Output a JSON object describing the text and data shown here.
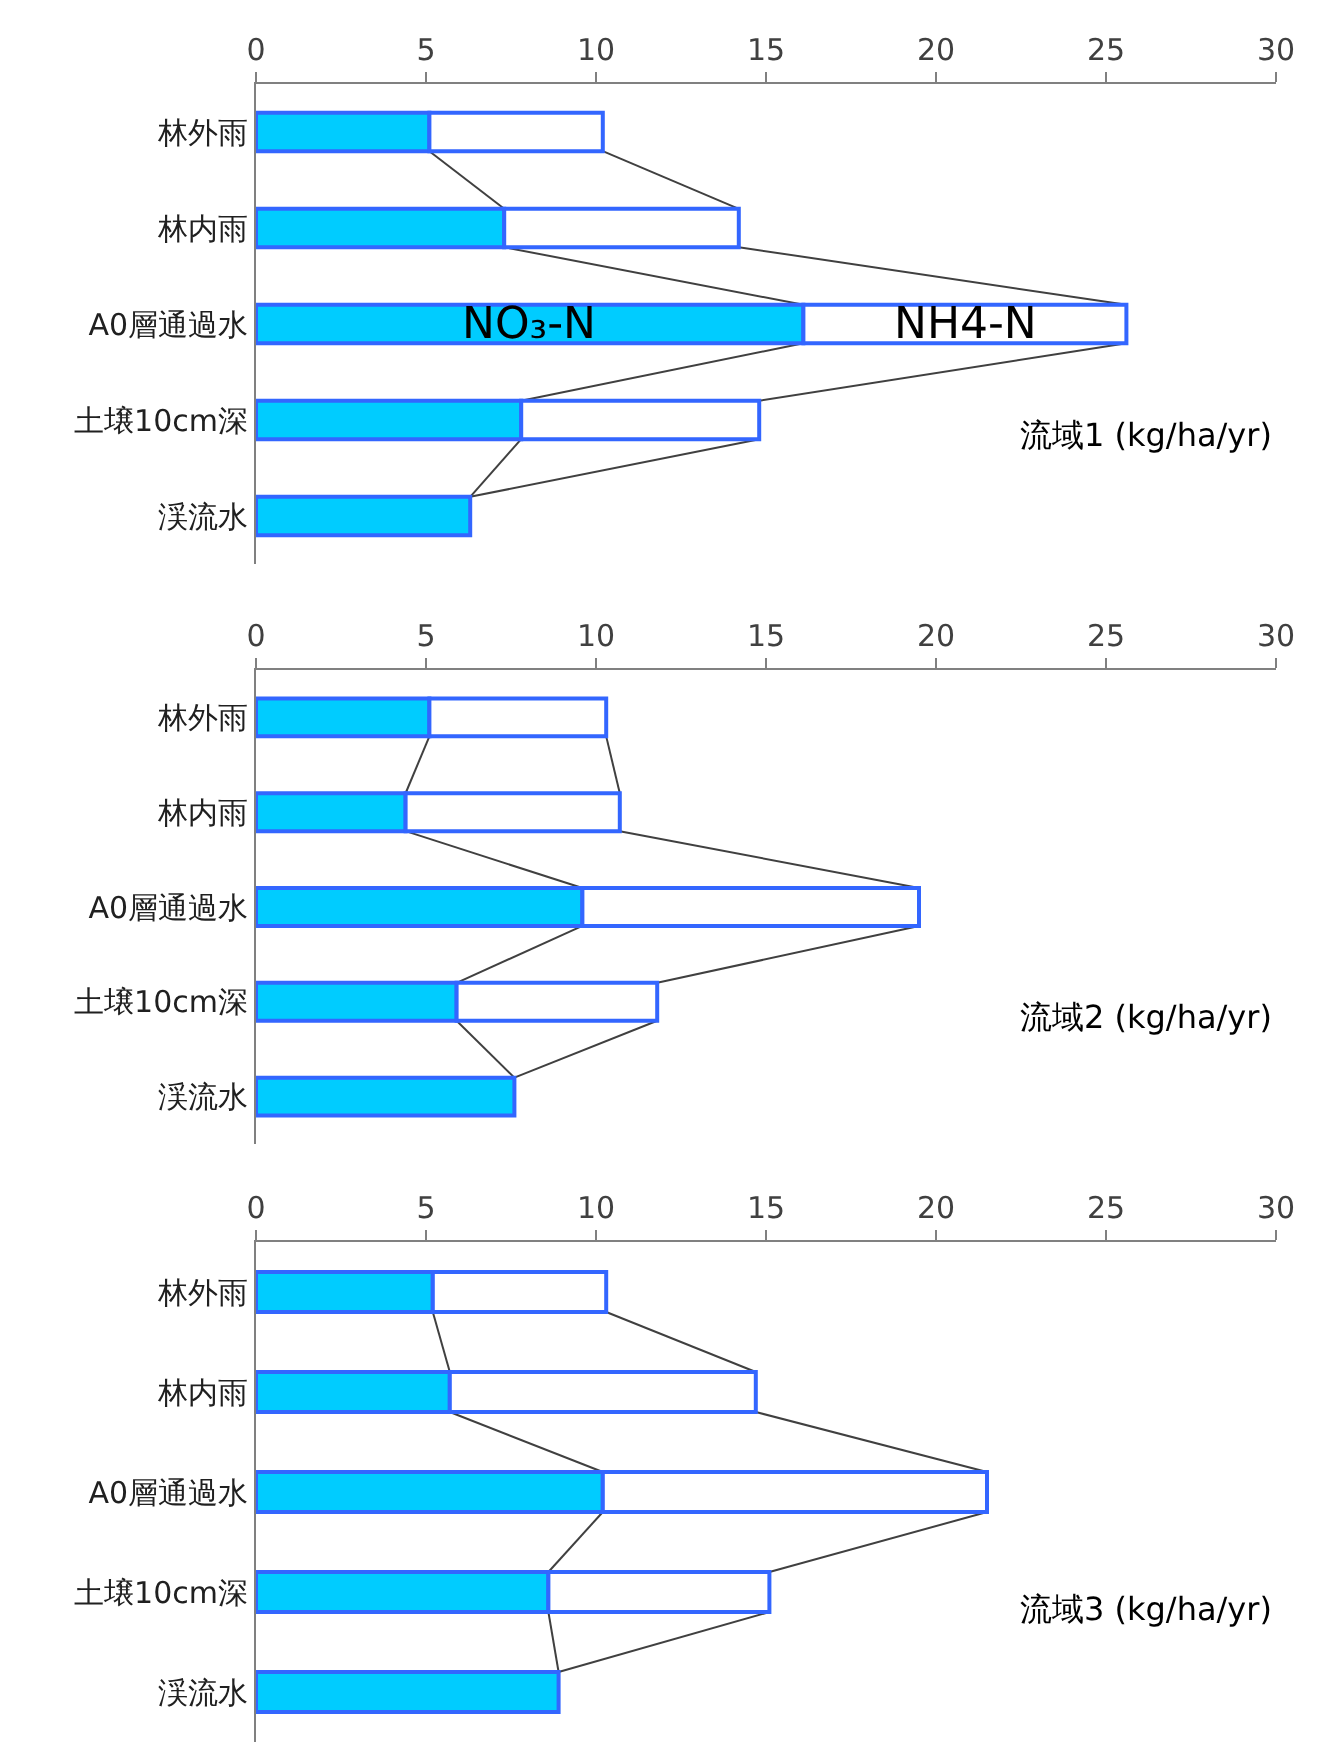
{
  "chart_data": [
    {
      "type": "bar",
      "orientation": "horizontal",
      "stacked": true,
      "categories": [
        "林外雨",
        "林内雨",
        "A0層通過水",
        "土壌10cm深",
        "渓流水"
      ],
      "series": [
        {
          "name": "NO₃-N",
          "color": "#00ccff",
          "values": [
            5.1,
            7.3,
            16.1,
            7.8,
            6.3
          ]
        },
        {
          "name": "NH4-N",
          "color": "#ffffff",
          "values": [
            5.1,
            6.9,
            9.5,
            7.0,
            0
          ]
        }
      ],
      "xlim": [
        0,
        30
      ],
      "xticks": [
        0,
        5,
        10,
        15,
        20,
        25,
        30
      ],
      "grid": false,
      "annotations": [
        "流域1 (kg/ha/yr)"
      ]
    },
    {
      "type": "bar",
      "orientation": "horizontal",
      "stacked": true,
      "categories": [
        "林外雨",
        "林内雨",
        "A0層通過水",
        "土壌10cm深",
        "渓流水"
      ],
      "series": [
        {
          "color": "#00ccff",
          "values": [
            5.1,
            4.4,
            9.6,
            5.9,
            7.6
          ]
        },
        {
          "color": "#ffffff",
          "values": [
            5.2,
            6.3,
            9.9,
            5.9,
            0
          ]
        }
      ],
      "xlim": [
        0,
        30
      ],
      "xticks": [
        0,
        5,
        10,
        15,
        20,
        25,
        30
      ],
      "grid": false,
      "annotations": [
        "流域2 (kg/ha/yr)"
      ]
    },
    {
      "type": "bar",
      "orientation": "horizontal",
      "stacked": true,
      "categories": [
        "林外雨",
        "林内雨",
        "A0層通過水",
        "土壌10cm深",
        "渓流水"
      ],
      "series": [
        {
          "color": "#00ccff",
          "values": [
            5.2,
            5.7,
            10.2,
            8.6,
            8.9
          ]
        },
        {
          "color": "#ffffff",
          "values": [
            5.1,
            9.0,
            11.3,
            6.5,
            0
          ]
        }
      ],
      "xlim": [
        0,
        30
      ],
      "xticks": [
        0,
        5,
        10,
        15,
        20,
        25,
        30
      ],
      "grid": false,
      "annotations": [
        "流域3 (kg/ha/yr)"
      ]
    }
  ]
}
